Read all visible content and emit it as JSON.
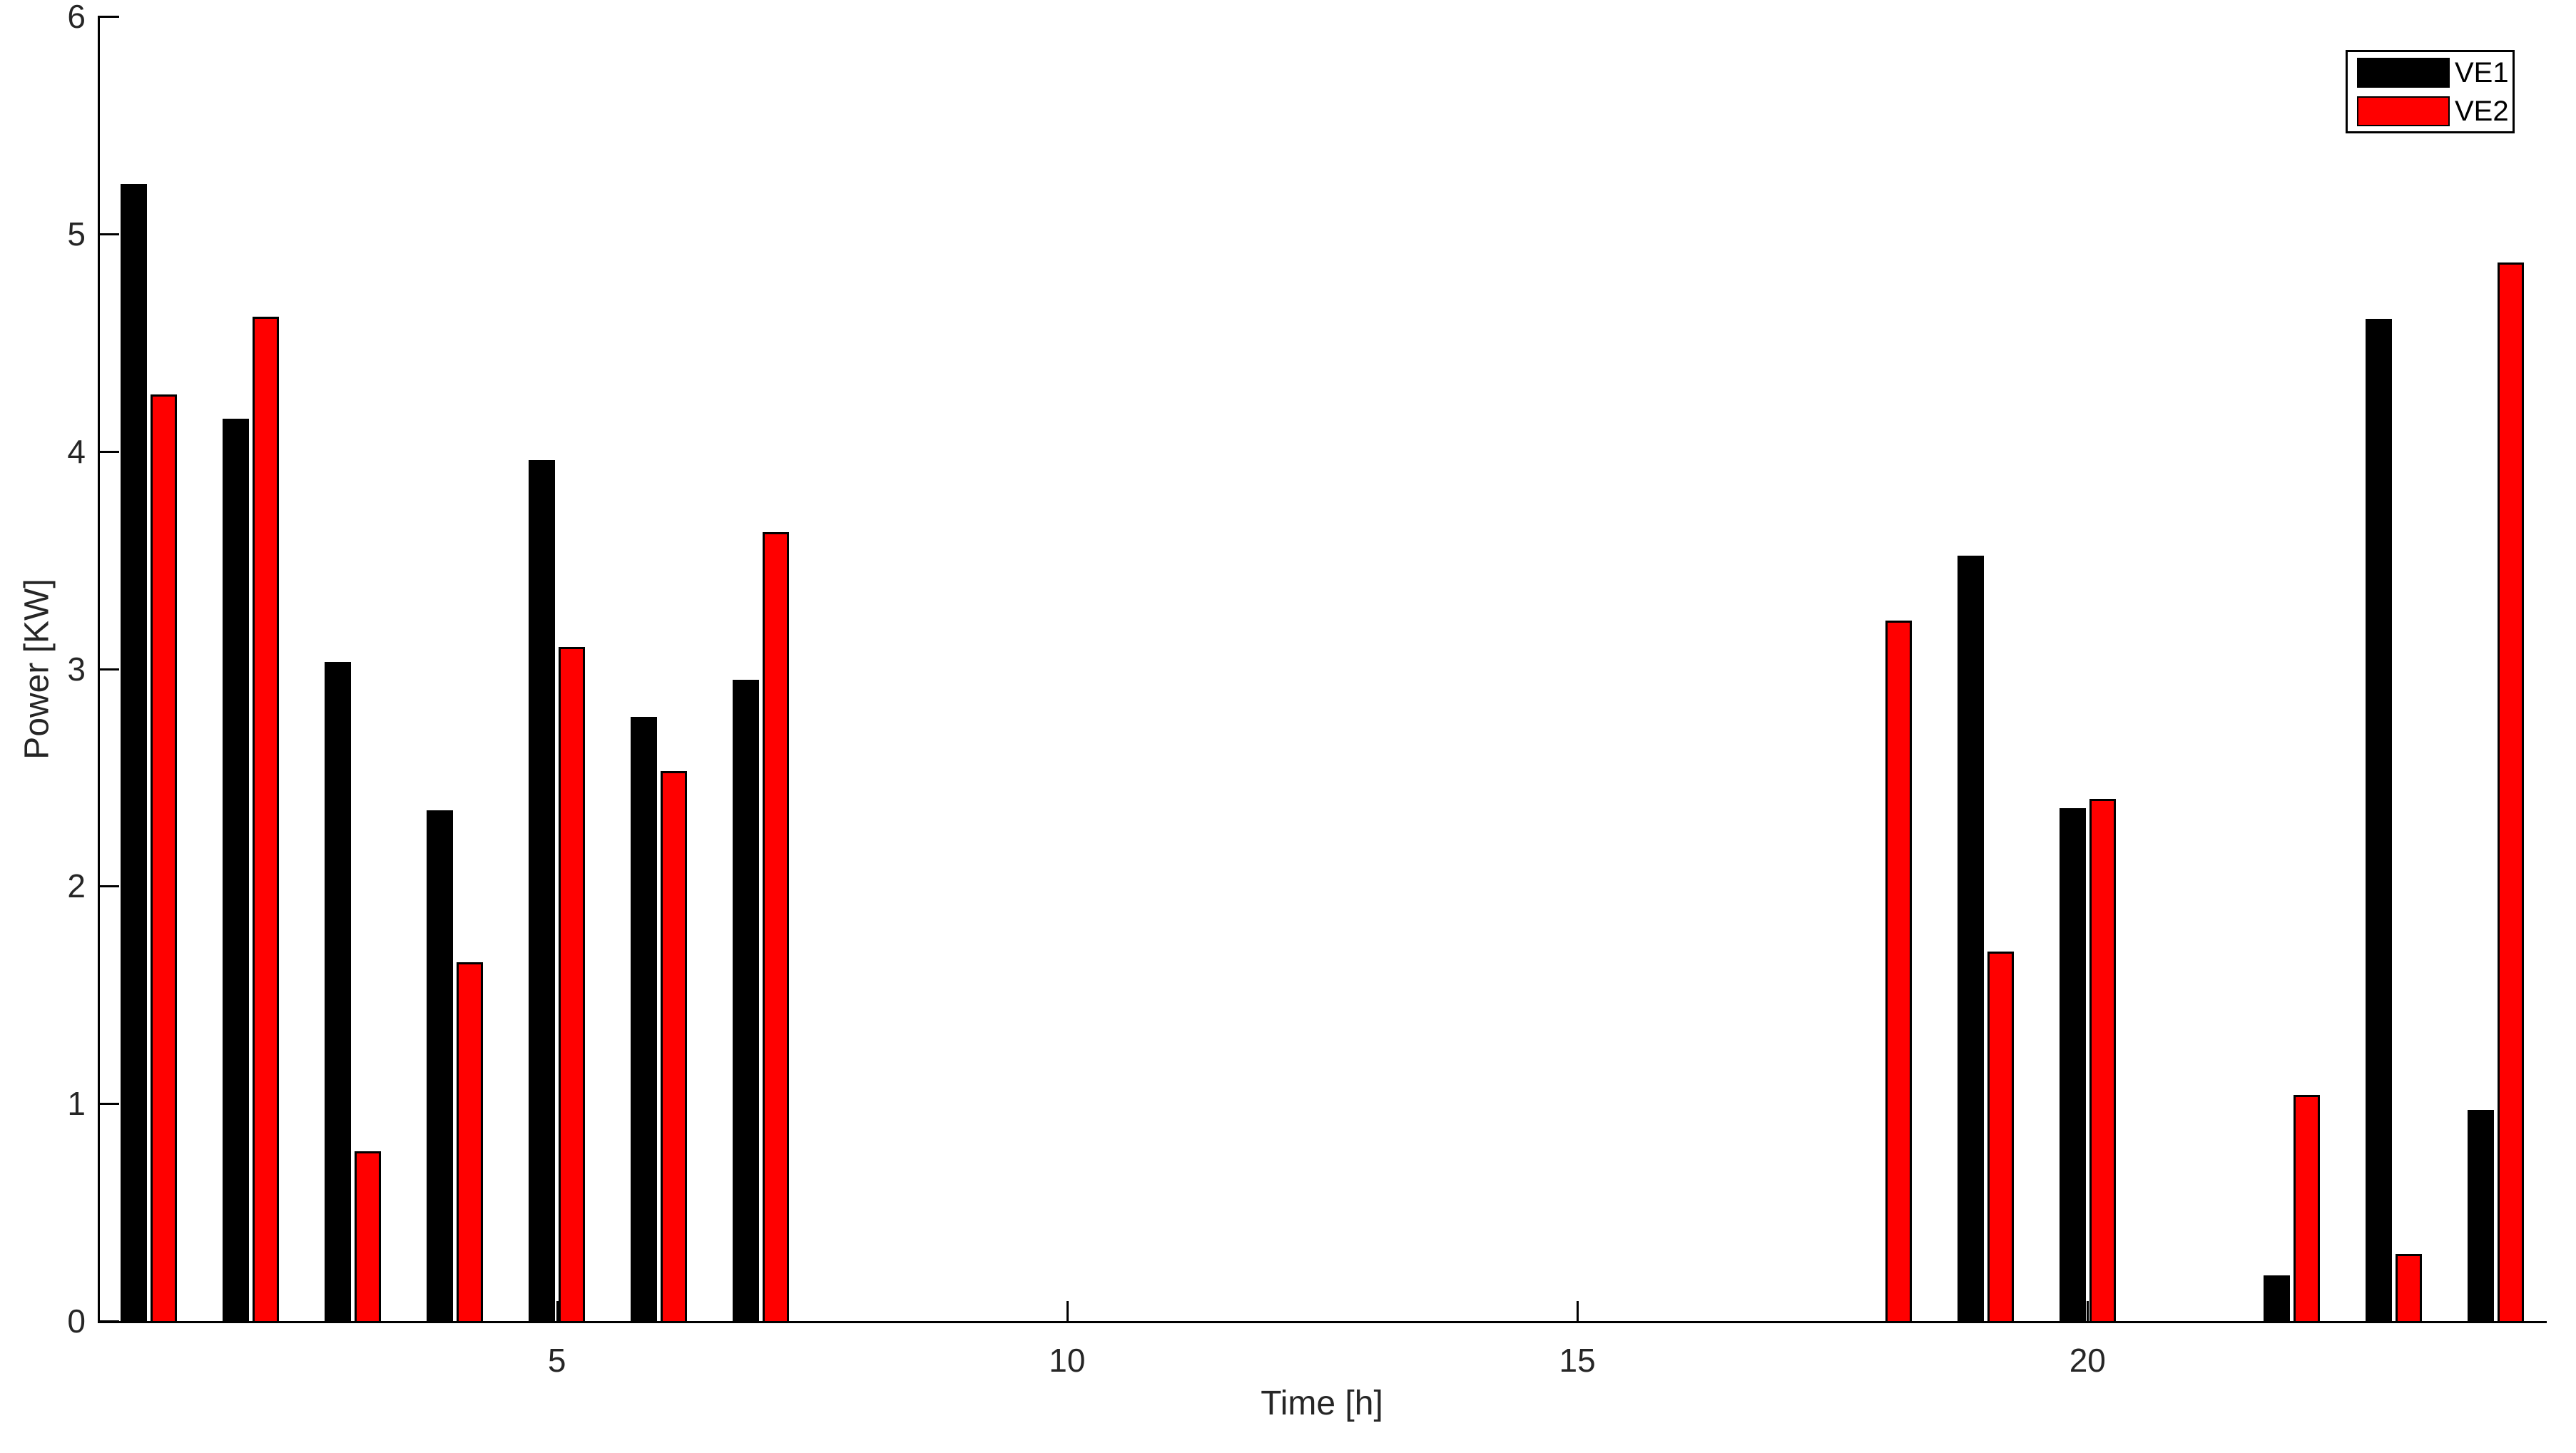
{
  "figure": {
    "background": "#ffffff",
    "axis_color": "#000000",
    "tick_label_color": "#262626"
  },
  "chart_data": {
    "type": "bar",
    "title": "",
    "xlabel": "Time [h]",
    "ylabel": "Power [KW]",
    "categories": [
      1,
      2,
      3,
      4,
      5,
      6,
      7,
      8,
      9,
      10,
      11,
      12,
      13,
      14,
      15,
      16,
      17,
      18,
      19,
      20,
      21,
      22,
      23,
      24
    ],
    "series": [
      {
        "name": "VE1",
        "color": "#000000",
        "values": [
          5.23,
          4.15,
          3.03,
          2.35,
          3.96,
          2.78,
          2.95,
          0,
          0,
          0,
          0,
          0,
          0,
          0,
          0,
          0,
          0,
          0,
          3.52,
          2.36,
          0,
          0.21,
          4.61,
          0.97
        ]
      },
      {
        "name": "VE2",
        "color": "#ff0000",
        "values": [
          4.26,
          4.62,
          0.78,
          1.65,
          3.1,
          2.53,
          3.63,
          0,
          0,
          0,
          0,
          0,
          0,
          0,
          0,
          0,
          0,
          3.22,
          1.7,
          2.4,
          0,
          1.04,
          0.31,
          4.87
        ]
      }
    ],
    "bar_edge_color": "#000000",
    "xlim": [
      0.5,
      24.5
    ],
    "ylim": [
      0,
      6
    ],
    "xticks": [
      5,
      10,
      15,
      20
    ],
    "yticks": [
      0,
      1,
      2,
      3,
      4,
      5,
      6
    ],
    "grid": false,
    "legend_position": "top-right"
  }
}
